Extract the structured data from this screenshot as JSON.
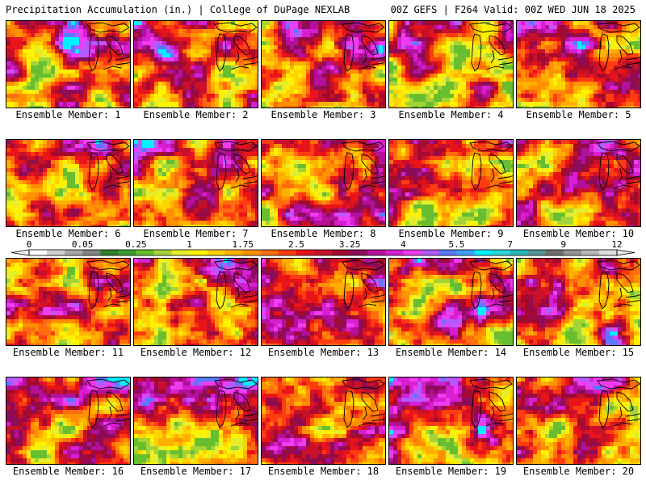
{
  "header": {
    "left_title": "Precipitation Accumulation (in.) | College of DuPage NEXLAB",
    "right_title": "00Z GEFS | F264 Valid: 00Z WED JUN 18 2025"
  },
  "member_label_prefix": "Ensemble Member:",
  "members": [
    1,
    2,
    3,
    4,
    5,
    6,
    7,
    8,
    9,
    10,
    11,
    12,
    13,
    14,
    15,
    16,
    17,
    18,
    19,
    20
  ],
  "colorbar": {
    "tick_labels": [
      "0",
      "0.05",
      "0.25",
      "1",
      "1.75",
      "2.5",
      "3.25",
      "4",
      "5.5",
      "7",
      "9",
      "12"
    ],
    "colors": [
      "#ffffff",
      "#d0d0d0",
      "#a8a8a8",
      "#828282",
      "#2f7f2f",
      "#399d2d",
      "#68be2e",
      "#a4d436",
      "#e6ee2c",
      "#fff200",
      "#ffd300",
      "#ffb000",
      "#ff9000",
      "#ff6d0e",
      "#ff3c10",
      "#e8141a",
      "#c8102a",
      "#a40a30",
      "#8c0c5a",
      "#b4109a",
      "#d81ed2",
      "#f03cf0",
      "#b45aff",
      "#5a78ff",
      "#3ca0ff",
      "#00f0ff",
      "#28d8d8",
      "#28b4b4",
      "#509696",
      "#707070",
      "#949494",
      "#b8b8b8",
      "#dcdcdc"
    ]
  },
  "map_colors": {
    "lake_outline": "#000000"
  }
}
